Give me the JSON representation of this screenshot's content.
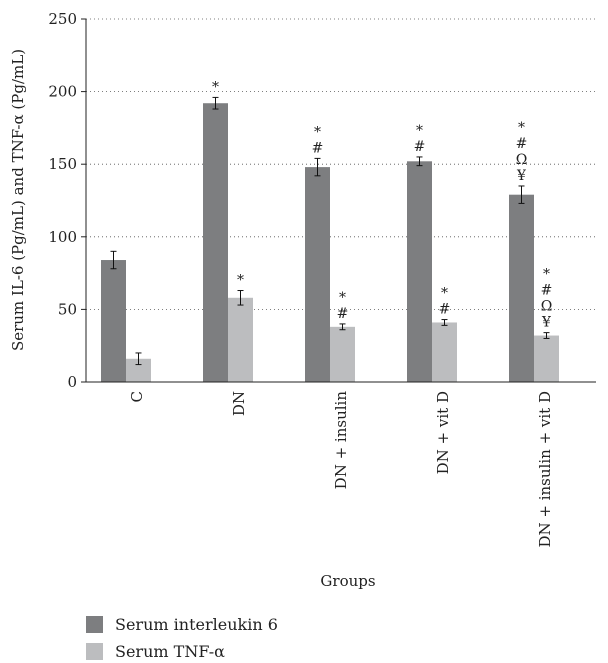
{
  "chart_data": {
    "type": "bar",
    "xlabel": "Groups",
    "ylabel": "Serum IL-6 (Pg/mL) and TNF-α (Pg/mL)",
    "ylim": [
      0,
      250
    ],
    "yticks": [
      0,
      50,
      100,
      150,
      200,
      250
    ],
    "grid": "horizontal dotted",
    "legend_position": "bottom-left",
    "categories": [
      "C",
      "DN",
      "DN + insulin",
      "DN + vit D",
      "DN + insulin + vit D"
    ],
    "series": [
      {
        "name": "Serum interleukin 6",
        "color": "#7d7e80",
        "values": [
          84,
          192,
          148,
          152,
          129
        ],
        "errors": [
          6,
          4,
          6,
          3,
          6
        ],
        "annotations": [
          [],
          [
            "*"
          ],
          [
            "*",
            "#"
          ],
          [
            "*",
            "#"
          ],
          [
            "*",
            "#",
            "Ω",
            "¥"
          ]
        ]
      },
      {
        "name": "Serum TNF-α",
        "color": "#bcbdbf",
        "values": [
          16,
          58,
          38,
          41,
          32
        ],
        "errors": [
          4,
          5,
          2,
          2,
          2
        ],
        "annotations": [
          [],
          [
            "*"
          ],
          [
            "*",
            "#"
          ],
          [
            "*",
            "#"
          ],
          [
            "*",
            "#",
            "Ω",
            "¥"
          ]
        ]
      }
    ]
  }
}
